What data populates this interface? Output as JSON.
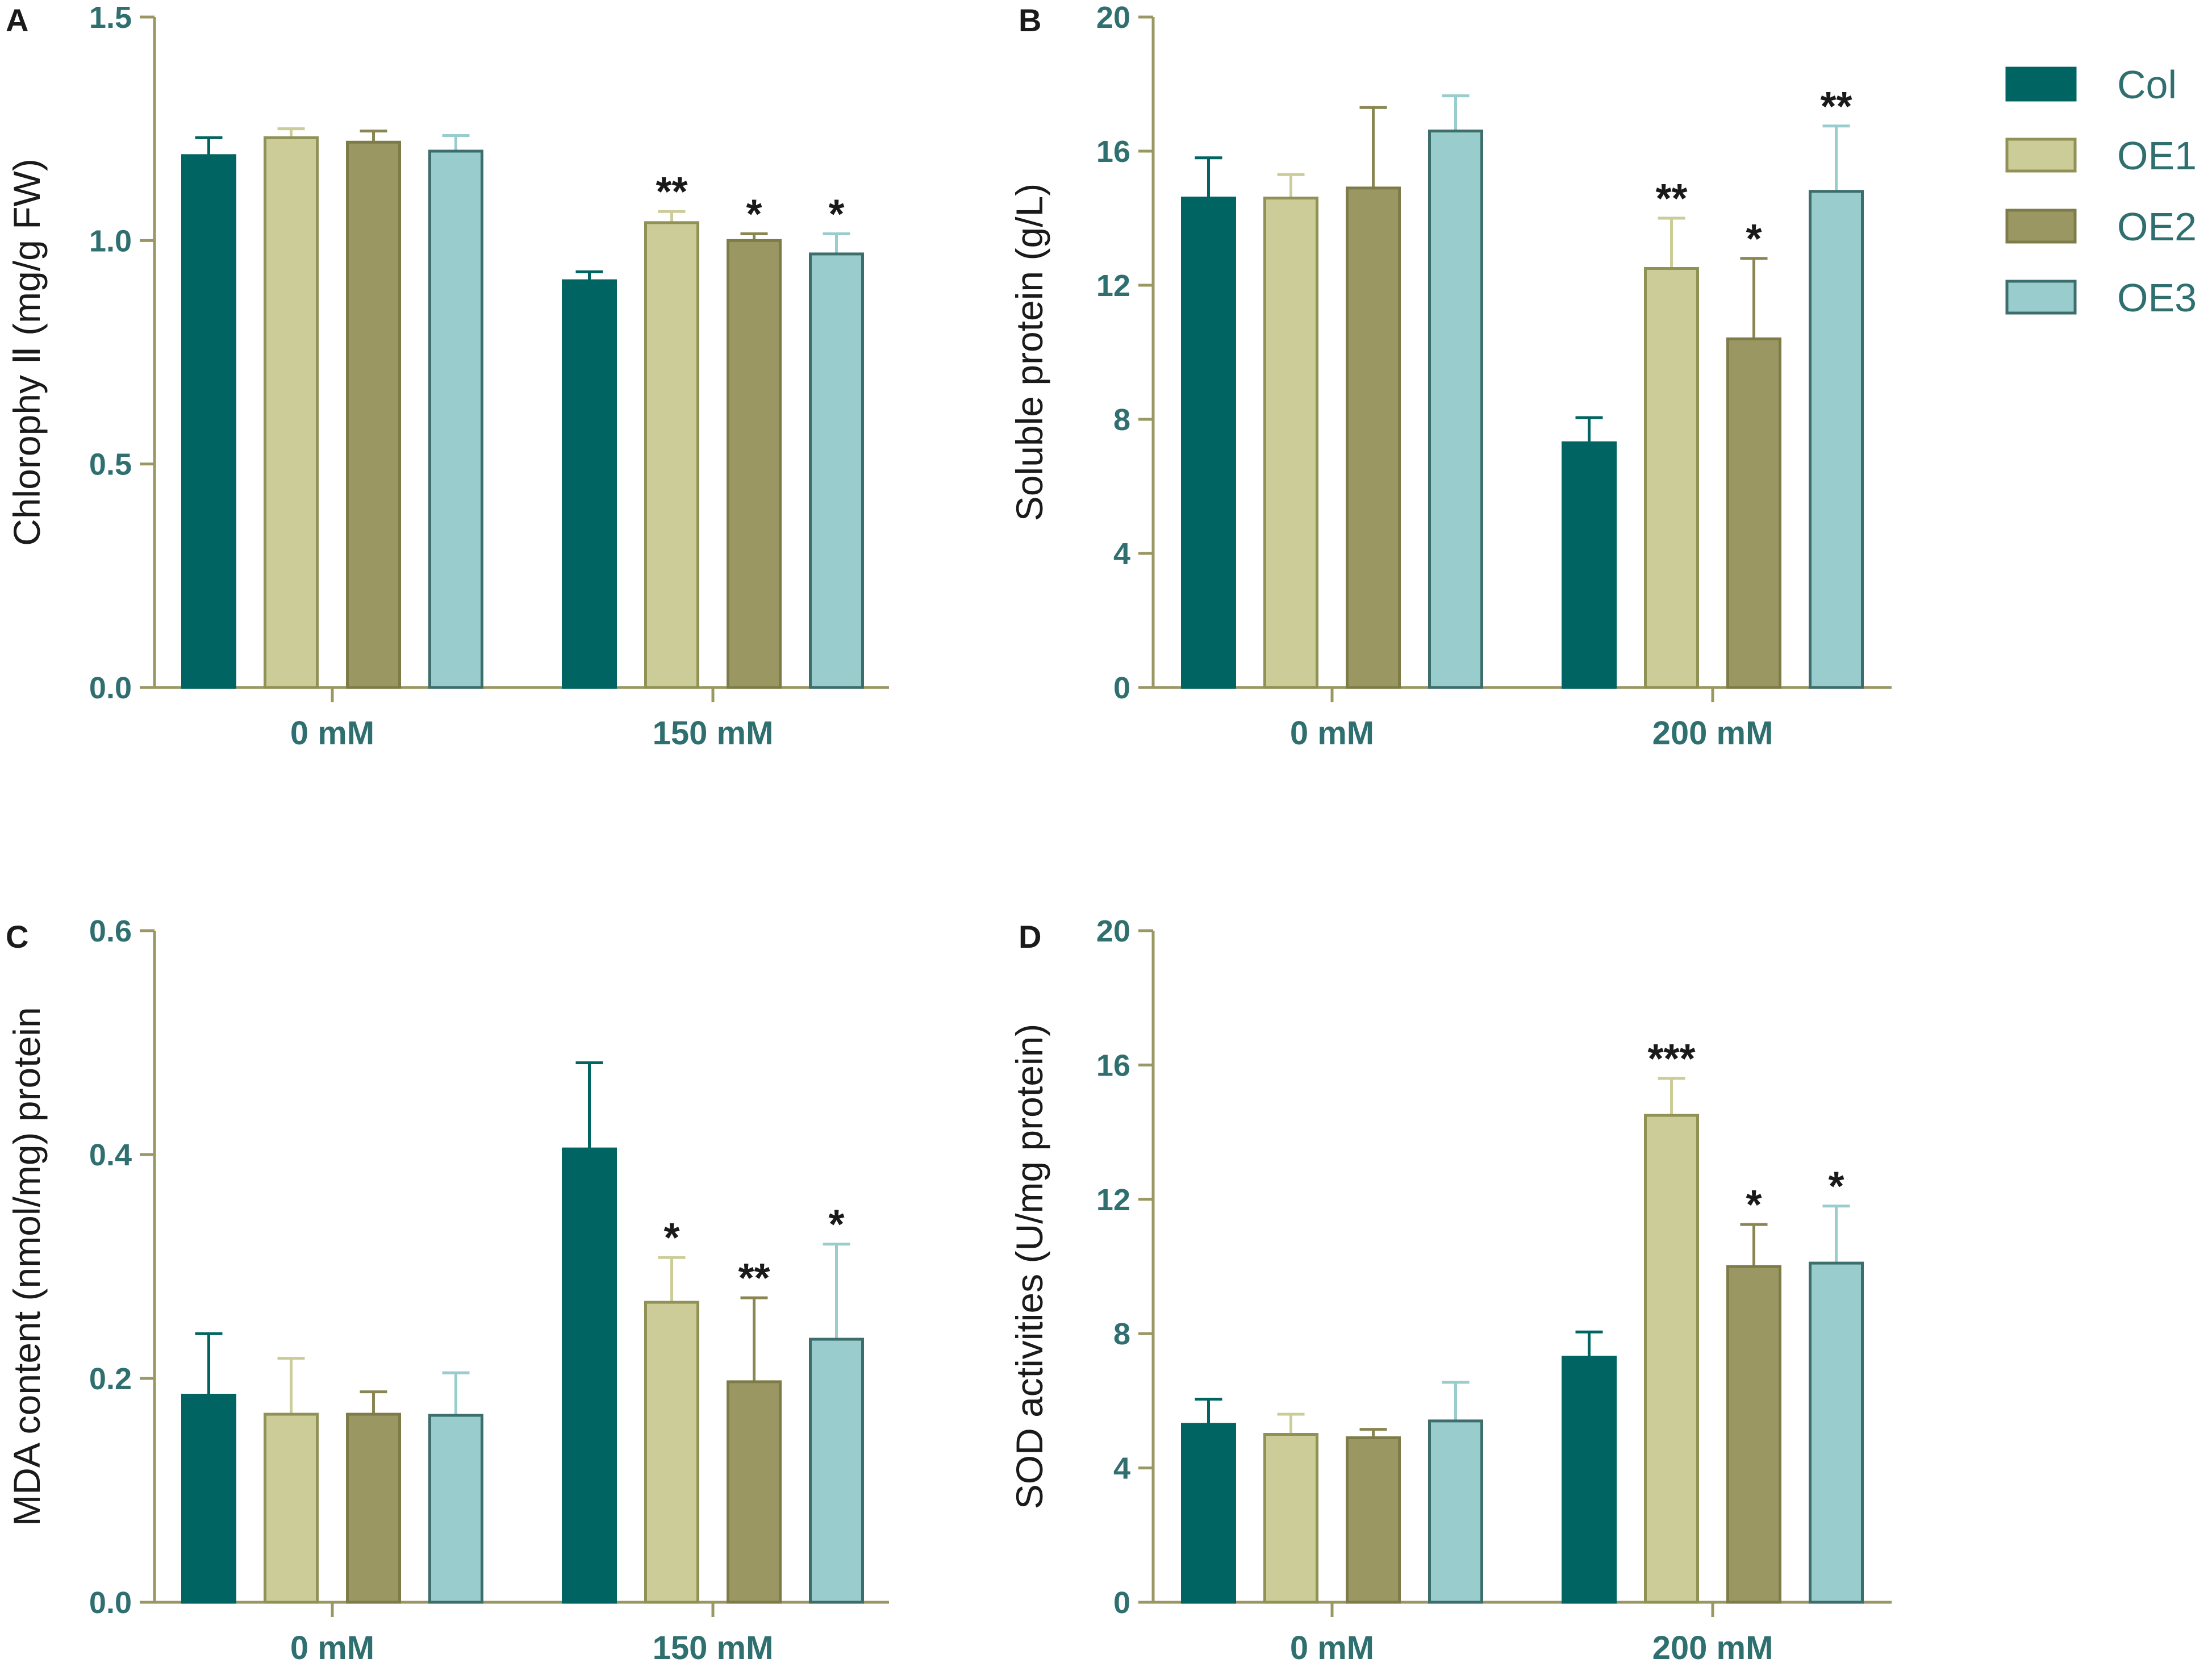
{
  "chart_data": [
    {
      "type": "bar",
      "panel": "A",
      "ylabel": "Chlorophy Ⅱ (mg/g FW)",
      "ylim": [
        0,
        1.5
      ],
      "yticks": [
        "0.0",
        "0.5",
        "1.0",
        "1.5"
      ],
      "ytick_values": [
        0,
        0.5,
        1.0,
        1.5
      ],
      "categories": [
        "0 mM",
        "150 mM"
      ],
      "series": [
        {
          "name": "Col",
          "values": [
            1.19,
            0.91
          ],
          "errors": [
            0.04,
            0.02
          ],
          "sig": [
            "",
            ""
          ]
        },
        {
          "name": "OE1",
          "values": [
            1.23,
            1.04
          ],
          "errors": [
            0.02,
            0.025
          ],
          "sig": [
            "",
            "**"
          ]
        },
        {
          "name": "OE2",
          "values": [
            1.22,
            1.0
          ],
          "errors": [
            0.025,
            0.015
          ],
          "sig": [
            "",
            "*"
          ]
        },
        {
          "name": "OE3",
          "values": [
            1.2,
            0.97
          ],
          "errors": [
            0.035,
            0.045
          ],
          "sig": [
            "",
            "*"
          ]
        }
      ]
    },
    {
      "type": "bar",
      "panel": "B",
      "ylabel": "Soluble protein (g/L)",
      "ylim": [
        0,
        20
      ],
      "yticks": [
        "0",
        "4",
        "8",
        "12",
        "16",
        "20"
      ],
      "ytick_values": [
        0,
        4,
        8,
        12,
        16,
        20
      ],
      "categories": [
        "0 mM",
        "200 mM"
      ],
      "series": [
        {
          "name": "Col",
          "values": [
            14.6,
            7.3
          ],
          "errors": [
            1.2,
            0.75
          ],
          "sig": [
            "",
            ""
          ]
        },
        {
          "name": "OE1",
          "values": [
            14.6,
            12.5
          ],
          "errors": [
            0.7,
            1.5
          ],
          "sig": [
            "",
            "**"
          ]
        },
        {
          "name": "OE2",
          "values": [
            14.9,
            10.4
          ],
          "errors": [
            2.4,
            2.4
          ],
          "sig": [
            "",
            "*"
          ]
        },
        {
          "name": "OE3",
          "values": [
            16.6,
            14.8
          ],
          "errors": [
            1.05,
            1.95
          ],
          "sig": [
            "",
            "**"
          ]
        }
      ]
    },
    {
      "type": "bar",
      "panel": "C",
      "ylabel": "MDA content (nmol/mg) protein",
      "ylim": [
        0,
        0.6
      ],
      "yticks": [
        "0.0",
        "0.2",
        "0.4",
        "0.6"
      ],
      "ytick_values": [
        0,
        0.2,
        0.4,
        0.6
      ],
      "categories": [
        "0 mM",
        "150 mM"
      ],
      "series": [
        {
          "name": "Col",
          "values": [
            0.185,
            0.405
          ],
          "errors": [
            0.055,
            0.077
          ],
          "sig": [
            "",
            ""
          ]
        },
        {
          "name": "OE1",
          "values": [
            0.168,
            0.268
          ],
          "errors": [
            0.05,
            0.04
          ],
          "sig": [
            "",
            "*"
          ]
        },
        {
          "name": "OE2",
          "values": [
            0.168,
            0.197
          ],
          "errors": [
            0.02,
            0.075
          ],
          "sig": [
            "",
            "**"
          ]
        },
        {
          "name": "OE3",
          "values": [
            0.167,
            0.235
          ],
          "errors": [
            0.038,
            0.085
          ],
          "sig": [
            "",
            "*"
          ]
        }
      ]
    },
    {
      "type": "bar",
      "panel": "D",
      "ylabel": "SOD activities (U/mg protein)",
      "ylim": [
        0,
        20
      ],
      "yticks": [
        "0",
        "4",
        "8",
        "12",
        "16",
        "20"
      ],
      "ytick_values": [
        0,
        4,
        8,
        12,
        16,
        20
      ],
      "categories": [
        "0 mM",
        "200 mM"
      ],
      "series": [
        {
          "name": "Col",
          "values": [
            5.3,
            7.3
          ],
          "errors": [
            0.75,
            0.75
          ],
          "sig": [
            "",
            ""
          ]
        },
        {
          "name": "OE1",
          "values": [
            5.0,
            14.5
          ],
          "errors": [
            0.6,
            1.1
          ],
          "sig": [
            "",
            "***"
          ]
        },
        {
          "name": "OE2",
          "values": [
            4.9,
            10.0
          ],
          "errors": [
            0.25,
            1.25
          ],
          "sig": [
            "",
            "*"
          ]
        },
        {
          "name": "OE3",
          "values": [
            5.4,
            10.1
          ],
          "errors": [
            1.15,
            1.7
          ],
          "sig": [
            "",
            "*"
          ]
        }
      ]
    }
  ],
  "legend": {
    "entries": [
      {
        "name": "Col",
        "fill": "#006462",
        "stroke": "#006462"
      },
      {
        "name": "OE1",
        "fill": "#cccc99",
        "stroke": "#8f9155"
      },
      {
        "name": "OE2",
        "fill": "#9a9763",
        "stroke": "#7d7b48"
      },
      {
        "name": "OE3",
        "fill": "#99cccc",
        "stroke": "#3d6e6c"
      }
    ]
  },
  "colors": {
    "axis": "#9a9763",
    "tick_label": "#2f6f6f",
    "err_col": "#006462",
    "err_oe1": "#cccc99",
    "err_oe2": "#8a8652",
    "err_oe3": "#99cccc"
  }
}
